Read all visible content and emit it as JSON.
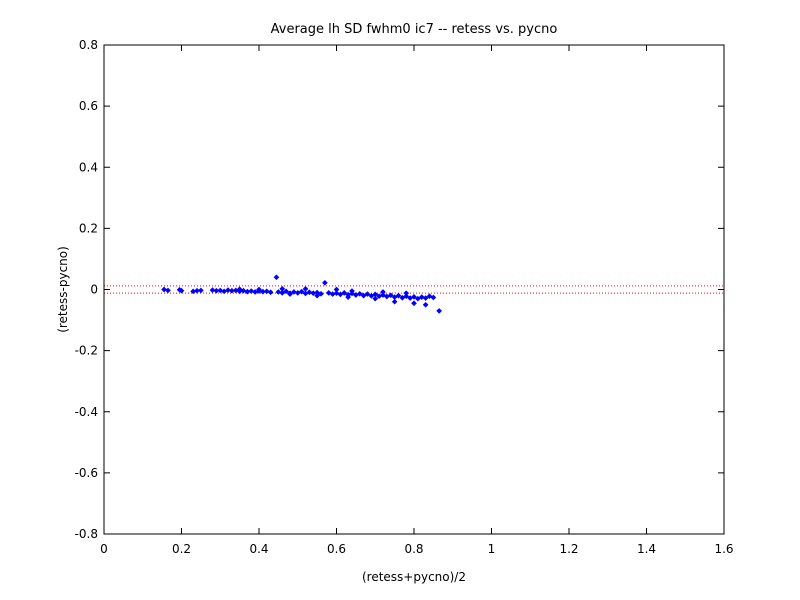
{
  "chart_data": {
    "type": "scatter",
    "title": "Average lh SD fwhm0 ic7 -- retess vs. pycno",
    "xlabel": "(retess+pycno)/2",
    "ylabel": "(retess-pycno)",
    "xlim": [
      0,
      1.6
    ],
    "ylim": [
      -0.8,
      0.8
    ],
    "xticks": [
      0,
      0.2,
      0.4,
      0.6,
      0.8,
      1,
      1.2,
      1.4,
      1.6
    ],
    "xtick_labels": [
      "0",
      "0.2",
      "0.4",
      "0.6",
      "0.8",
      "1",
      "1.2",
      "1.4",
      "1.6"
    ],
    "yticks": [
      -0.8,
      -0.6,
      -0.4,
      -0.2,
      0,
      0.2,
      0.4,
      0.6,
      0.8
    ],
    "ytick_labels": [
      "-0.8",
      "-0.6",
      "-0.4",
      "-0.2",
      "0",
      "0.2",
      "0.4",
      "0.6",
      "0.8"
    ],
    "grid": false,
    "reference_lines": [
      0.012,
      -0.012
    ],
    "reference_line_color": "#ff0000",
    "point_color": "#0000ff",
    "points": [
      [
        0.155,
        0.0
      ],
      [
        0.165,
        -0.003
      ],
      [
        0.195,
        -0.001
      ],
      [
        0.2,
        -0.004
      ],
      [
        0.23,
        -0.006
      ],
      [
        0.24,
        -0.004
      ],
      [
        0.25,
        -0.003
      ],
      [
        0.28,
        -0.002
      ],
      [
        0.29,
        -0.004
      ],
      [
        0.3,
        -0.003
      ],
      [
        0.31,
        -0.006
      ],
      [
        0.32,
        -0.002
      ],
      [
        0.33,
        -0.004
      ],
      [
        0.34,
        -0.003
      ],
      [
        0.35,
        -0.006
      ],
      [
        0.36,
        -0.004
      ],
      [
        0.37,
        -0.007
      ],
      [
        0.38,
        -0.005
      ],
      [
        0.39,
        -0.008
      ],
      [
        0.4,
        -0.005
      ],
      [
        0.41,
        -0.007
      ],
      [
        0.42,
        -0.006
      ],
      [
        0.43,
        -0.009
      ],
      [
        0.445,
        0.04
      ],
      [
        0.45,
        -0.008
      ],
      [
        0.46,
        -0.011
      ],
      [
        0.47,
        -0.006
      ],
      [
        0.48,
        -0.012
      ],
      [
        0.49,
        -0.008
      ],
      [
        0.5,
        -0.011
      ],
      [
        0.51,
        -0.007
      ],
      [
        0.52,
        -0.013
      ],
      [
        0.53,
        -0.009
      ],
      [
        0.54,
        -0.012
      ],
      [
        0.55,
        -0.01
      ],
      [
        0.56,
        -0.014
      ],
      [
        0.57,
        0.022
      ],
      [
        0.58,
        -0.011
      ],
      [
        0.59,
        -0.015
      ],
      [
        0.6,
        -0.012
      ],
      [
        0.61,
        -0.016
      ],
      [
        0.62,
        -0.011
      ],
      [
        0.63,
        -0.017
      ],
      [
        0.64,
        -0.013
      ],
      [
        0.65,
        -0.018
      ],
      [
        0.66,
        -0.014
      ],
      [
        0.67,
        -0.02
      ],
      [
        0.68,
        -0.015
      ],
      [
        0.69,
        -0.021
      ],
      [
        0.7,
        -0.016
      ],
      [
        0.71,
        -0.022
      ],
      [
        0.72,
        -0.018
      ],
      [
        0.73,
        -0.023
      ],
      [
        0.74,
        -0.019
      ],
      [
        0.75,
        -0.025
      ],
      [
        0.76,
        -0.02
      ],
      [
        0.77,
        -0.027
      ],
      [
        0.78,
        -0.022
      ],
      [
        0.79,
        -0.028
      ],
      [
        0.8,
        -0.024
      ],
      [
        0.81,
        -0.03
      ],
      [
        0.82,
        -0.025
      ],
      [
        0.83,
        -0.028
      ],
      [
        0.84,
        -0.022
      ],
      [
        0.85,
        -0.026
      ],
      [
        0.865,
        -0.07
      ],
      [
        0.83,
        -0.05
      ],
      [
        0.8,
        -0.045
      ],
      [
        0.75,
        -0.04
      ],
      [
        0.7,
        -0.03
      ],
      [
        0.63,
        -0.025
      ],
      [
        0.55,
        -0.02
      ],
      [
        0.48,
        -0.015
      ],
      [
        0.64,
        -0.005
      ],
      [
        0.72,
        -0.008
      ],
      [
        0.78,
        -0.012
      ],
      [
        0.52,
        0.002
      ],
      [
        0.6,
        0.0
      ],
      [
        0.46,
        0.002
      ],
      [
        0.4,
        0.0
      ],
      [
        0.35,
        0.001
      ]
    ]
  }
}
